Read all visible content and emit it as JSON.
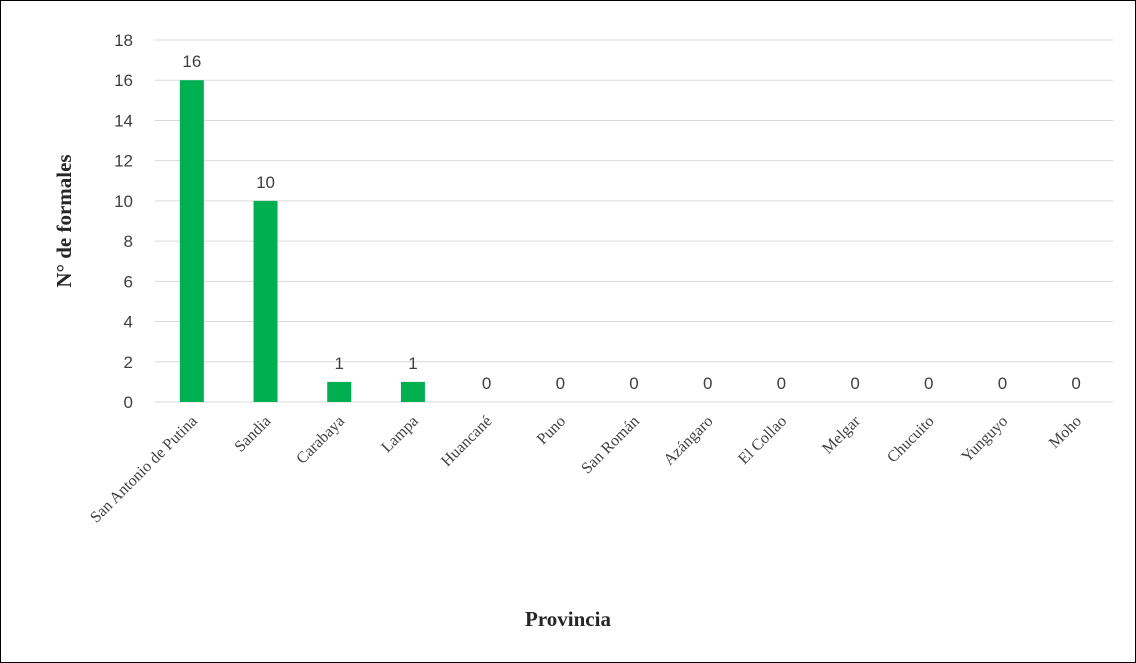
{
  "chart_data": {
    "type": "bar",
    "title": "",
    "xlabel": "Provincia",
    "ylabel": "N° de formales",
    "categories": [
      "San Antonio de Putina",
      "Sandia",
      "Carabaya",
      "Lampa",
      "Huancané",
      "Puno",
      "San Román",
      "Azángaro",
      "El Collao",
      "Melgar",
      "Chucuito",
      "Yunguyo",
      "Moho"
    ],
    "values": [
      16,
      10,
      1,
      1,
      0,
      0,
      0,
      0,
      0,
      0,
      0,
      0,
      0
    ],
    "ylim": [
      0,
      18
    ],
    "yticks": [
      0,
      2,
      4,
      6,
      8,
      10,
      12,
      14,
      16,
      18
    ],
    "grid": true,
    "legend": "none",
    "bar_color": "#00b050",
    "grid_color": "#d9d9d9"
  }
}
